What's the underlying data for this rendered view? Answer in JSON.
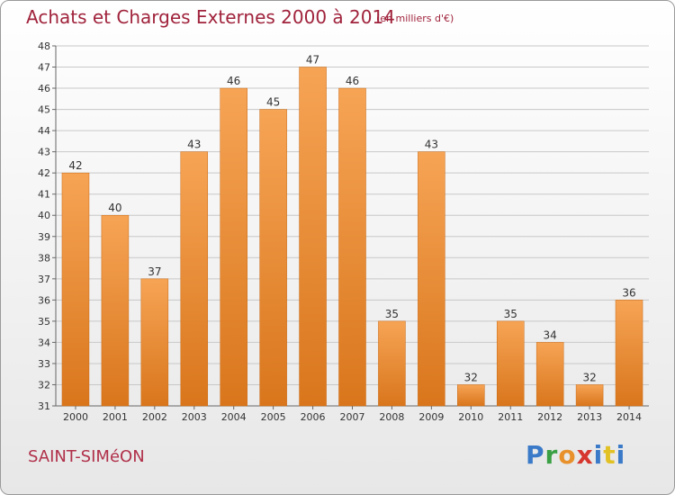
{
  "header": {
    "title": "Achats et Charges Externes 2000 à 2014",
    "subtitle": "(en milliers d'€)"
  },
  "footer": {
    "commune": "SAINT-SIMéON",
    "logo_letters": [
      "P",
      "r",
      "o",
      "x",
      "i",
      "t",
      "i"
    ]
  },
  "colors": {
    "title": "#a0233c",
    "bar_light": "#f6a455",
    "bar_dark": "#d9761c",
    "grid": "#c8c8c8"
  },
  "chart_data": {
    "type": "bar",
    "categories": [
      "2000",
      "2001",
      "2002",
      "2003",
      "2004",
      "2005",
      "2006",
      "2007",
      "2008",
      "2009",
      "2010",
      "2011",
      "2012",
      "2013",
      "2014"
    ],
    "values": [
      42,
      40,
      37,
      43,
      46,
      45,
      47,
      46,
      35,
      43,
      32,
      35,
      34,
      32,
      36
    ],
    "title": "Achats et Charges Externes 2000 à 2014",
    "xlabel": "",
    "ylabel": "",
    "ylim": [
      31,
      48
    ],
    "yticks": [
      31,
      32,
      33,
      34,
      35,
      36,
      37,
      38,
      39,
      40,
      41,
      42,
      43,
      44,
      45,
      46,
      47,
      48
    ],
    "grid": true,
    "legend": "none"
  }
}
